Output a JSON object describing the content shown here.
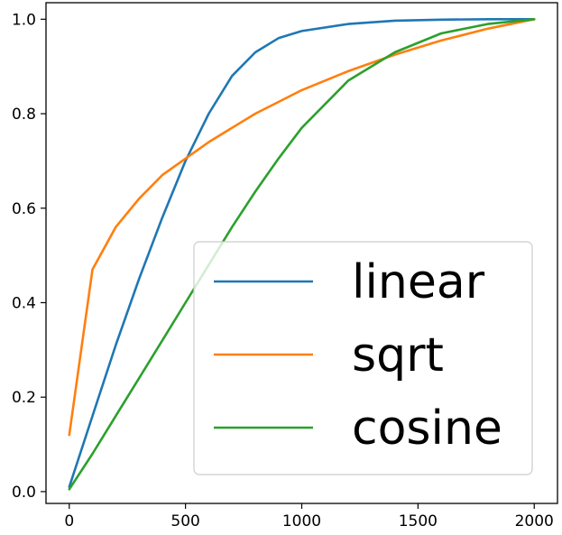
{
  "chart_data": {
    "type": "line",
    "title": "",
    "xlabel": "",
    "ylabel": "",
    "xlim": [
      -100,
      2100
    ],
    "ylim": [
      -0.025,
      1.035
    ],
    "x_ticks": [
      0,
      500,
      1000,
      1500,
      2000
    ],
    "x_tick_labels": [
      "0",
      "500",
      "1000",
      "1500",
      "2000"
    ],
    "y_ticks": [
      0.0,
      0.2,
      0.4,
      0.6,
      0.8,
      1.0
    ],
    "y_tick_labels": [
      "0.0",
      "0.2",
      "0.4",
      "0.6",
      "0.8",
      "1.0"
    ],
    "grid": false,
    "legend_position": "lower-right",
    "x": [
      0,
      100,
      200,
      300,
      400,
      500,
      600,
      700,
      800,
      900,
      1000,
      1200,
      1400,
      1600,
      1800,
      2000
    ],
    "series": [
      {
        "name": "linear",
        "color": "#1f77b4",
        "values": [
          0.01,
          0.16,
          0.31,
          0.45,
          0.58,
          0.7,
          0.8,
          0.88,
          0.93,
          0.96,
          0.975,
          0.99,
          0.997,
          0.999,
          1.0,
          1.0
        ]
      },
      {
        "name": "sqrt",
        "color": "#ff7f0e",
        "values": [
          0.12,
          0.47,
          0.56,
          0.62,
          0.67,
          0.705,
          0.74,
          0.77,
          0.8,
          0.825,
          0.85,
          0.89,
          0.925,
          0.955,
          0.98,
          1.0
        ]
      },
      {
        "name": "cosine",
        "color": "#2ca02c",
        "values": [
          0.005,
          0.08,
          0.16,
          0.24,
          0.32,
          0.4,
          0.48,
          0.56,
          0.635,
          0.705,
          0.77,
          0.87,
          0.93,
          0.97,
          0.99,
          1.0
        ]
      }
    ]
  }
}
